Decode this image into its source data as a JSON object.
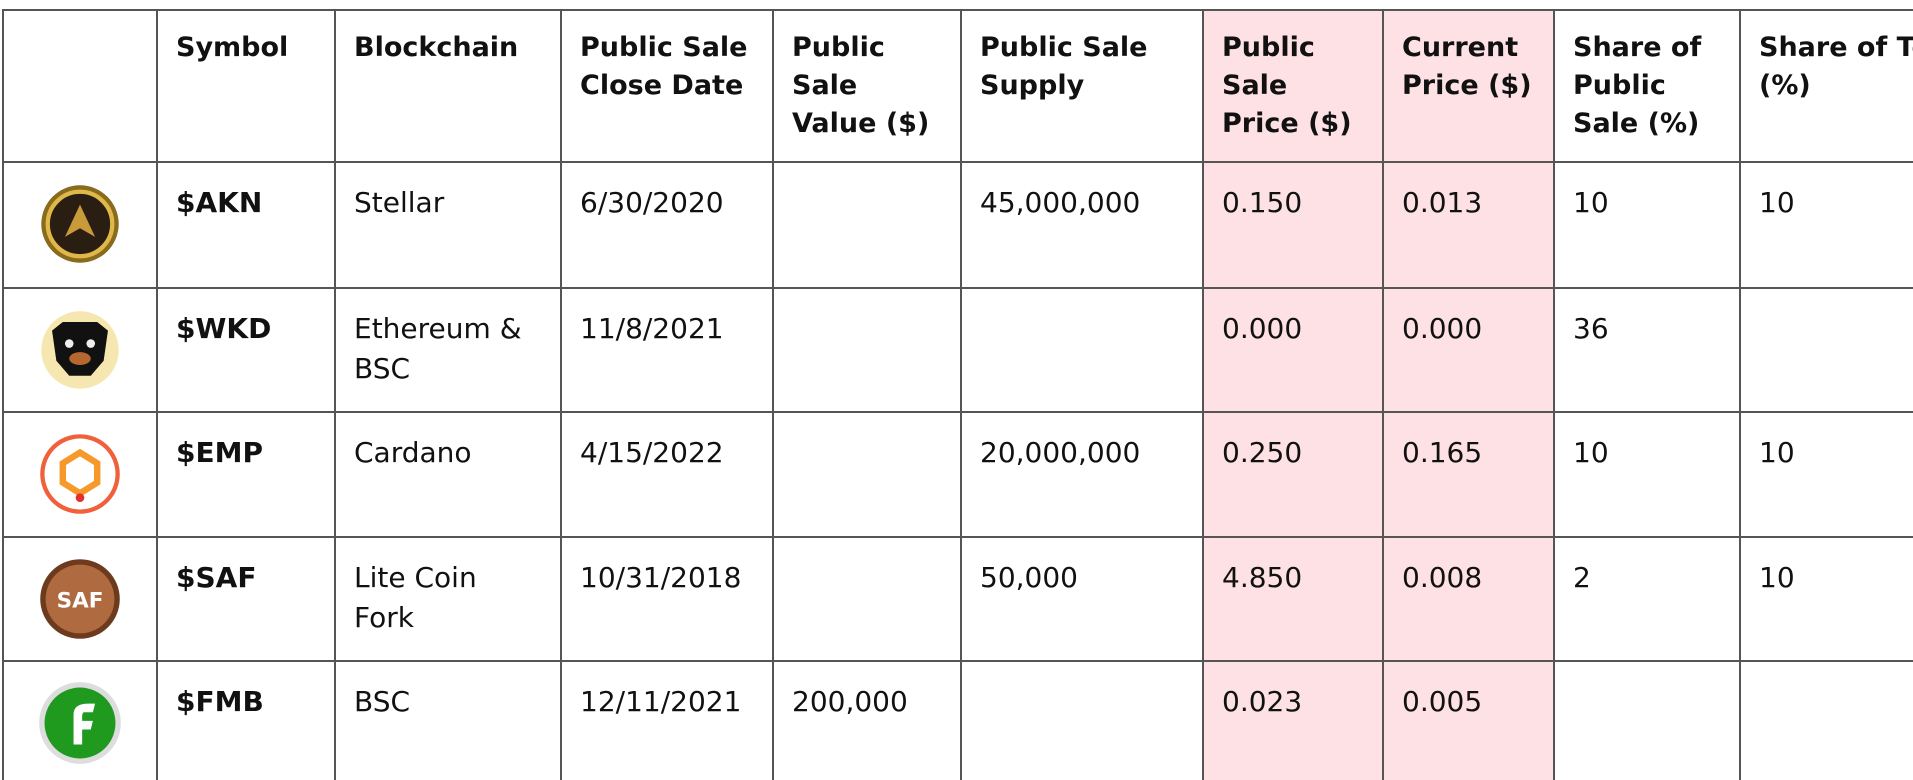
{
  "table": {
    "columns": [
      "Symbol",
      "Blockchain",
      "Public Sale Close Date",
      "Public Sale Value ($)",
      "Public Sale Supply",
      "Public Sale Price ($)",
      "Current Price ($)",
      "Share of Public Sale (%)",
      "Share of Team (%)"
    ],
    "rows": [
      [
        "$AKN",
        "Stellar",
        "6/30/2020",
        null,
        "45,000,000",
        "0.150",
        "0.013",
        "10",
        "10"
      ],
      [
        "$WKD",
        "Ethereum & BSC",
        "11/8/2021",
        null,
        null,
        "0.000",
        "0.000",
        "36",
        null
      ],
      [
        "$EMP",
        "Cardano",
        "4/15/2022",
        null,
        "20,000,000",
        "0.250",
        "0.165",
        "10",
        "10"
      ],
      [
        "$SAF",
        "Lite Coin Fork",
        "10/31/2018",
        null,
        "50,000",
        "4.850",
        "0.008",
        "2",
        "10"
      ],
      [
        "$FMB",
        "BSC",
        "12/11/2021",
        "200,000",
        null,
        "0.023",
        "0.005",
        null,
        null
      ]
    ]
  }
}
